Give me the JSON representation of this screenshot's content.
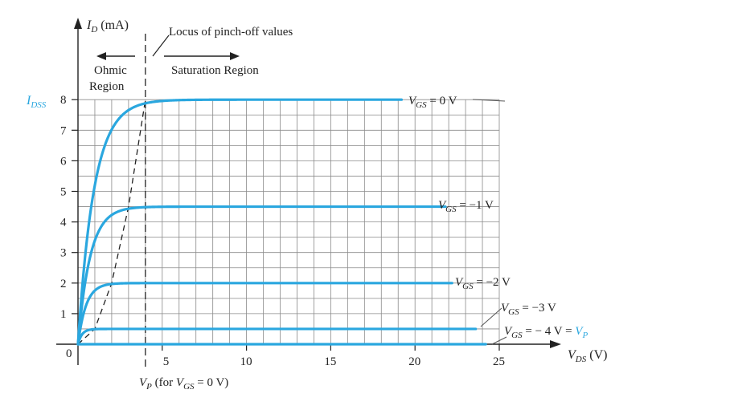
{
  "chart_data": {
    "type": "line",
    "title": "",
    "x_axis": {
      "label_main": "V",
      "label_sub": "DS",
      "label_unit": " (V)",
      "range": [
        0,
        25
      ],
      "tick_values": [
        5,
        10,
        15,
        20,
        25
      ],
      "tick_labels": [
        "5",
        "10",
        "15",
        "20",
        "25"
      ],
      "origin_label": "0",
      "grid_step": 1
    },
    "y_axis": {
      "label_main": "I",
      "label_sub": "D",
      "label_unit": " (mA)",
      "range": [
        0,
        8
      ],
      "tick_values": [
        1,
        2,
        3,
        4,
        5,
        6,
        7,
        8
      ],
      "tick_labels": [
        "1",
        "2",
        "3",
        "4",
        "5",
        "6",
        "7",
        "8"
      ],
      "grid_step": 0.5
    },
    "grid": true,
    "series": [
      {
        "vgs": 0,
        "saturation_id": 8,
        "end_x": 19.2,
        "label": "V_GS = 0 V",
        "label_parts": [
          "V",
          "GS",
          " = 0 V"
        ]
      },
      {
        "vgs": -1,
        "saturation_id": 4.5,
        "end_x": 21.8,
        "label": "V_GS = −1 V",
        "label_parts": [
          "V",
          "GS",
          " = −1 V"
        ]
      },
      {
        "vgs": -2,
        "saturation_id": 2,
        "end_x": 22.2,
        "label": "V_GS = −2 V",
        "label_parts": [
          "V",
          "GS",
          " = −2 V"
        ]
      },
      {
        "vgs": -3,
        "saturation_id": 0.5,
        "end_x": 23.6,
        "label": "V_GS = −3 V",
        "label_parts": [
          "V",
          "GS",
          " = −3 V"
        ]
      },
      {
        "vgs": -4,
        "saturation_id": 0,
        "end_x": 24.2,
        "label": "V_GS = − 4 V = V_P",
        "label_parts": [
          "V",
          "GS",
          " = − 4 V = ",
          "V",
          "P"
        ]
      }
    ],
    "pinch_off_locus": {
      "points": [
        [
          0,
          0
        ],
        [
          1,
          0.5
        ],
        [
          2,
          2
        ],
        [
          3,
          4.5
        ],
        [
          4,
          8
        ]
      ],
      "style": "dashed"
    },
    "vp_marker": {
      "x": 4,
      "style": "dashed-vertical"
    },
    "idss": {
      "value": 8,
      "label_main": "I",
      "label_sub": "DSS"
    },
    "colors": {
      "curve": "#2aa7df",
      "idss_label": "#2aa7df",
      "vp_highlight": "#2aa7df",
      "grid": "#8a8a8a",
      "axis": "#222222"
    }
  },
  "annotations": {
    "locus_label": "Locus of pinch-off values",
    "ohmic_line1": "Ohmic",
    "ohmic_line2": "Region",
    "saturation": "Saturation Region",
    "vp_label_prefix": "V",
    "vp_label_sub": "P",
    "vp_label_mid": " (for ",
    "vp_label_vgs": "V",
    "vp_label_vgs_sub": "GS",
    "vp_label_end": " = 0 V)"
  }
}
